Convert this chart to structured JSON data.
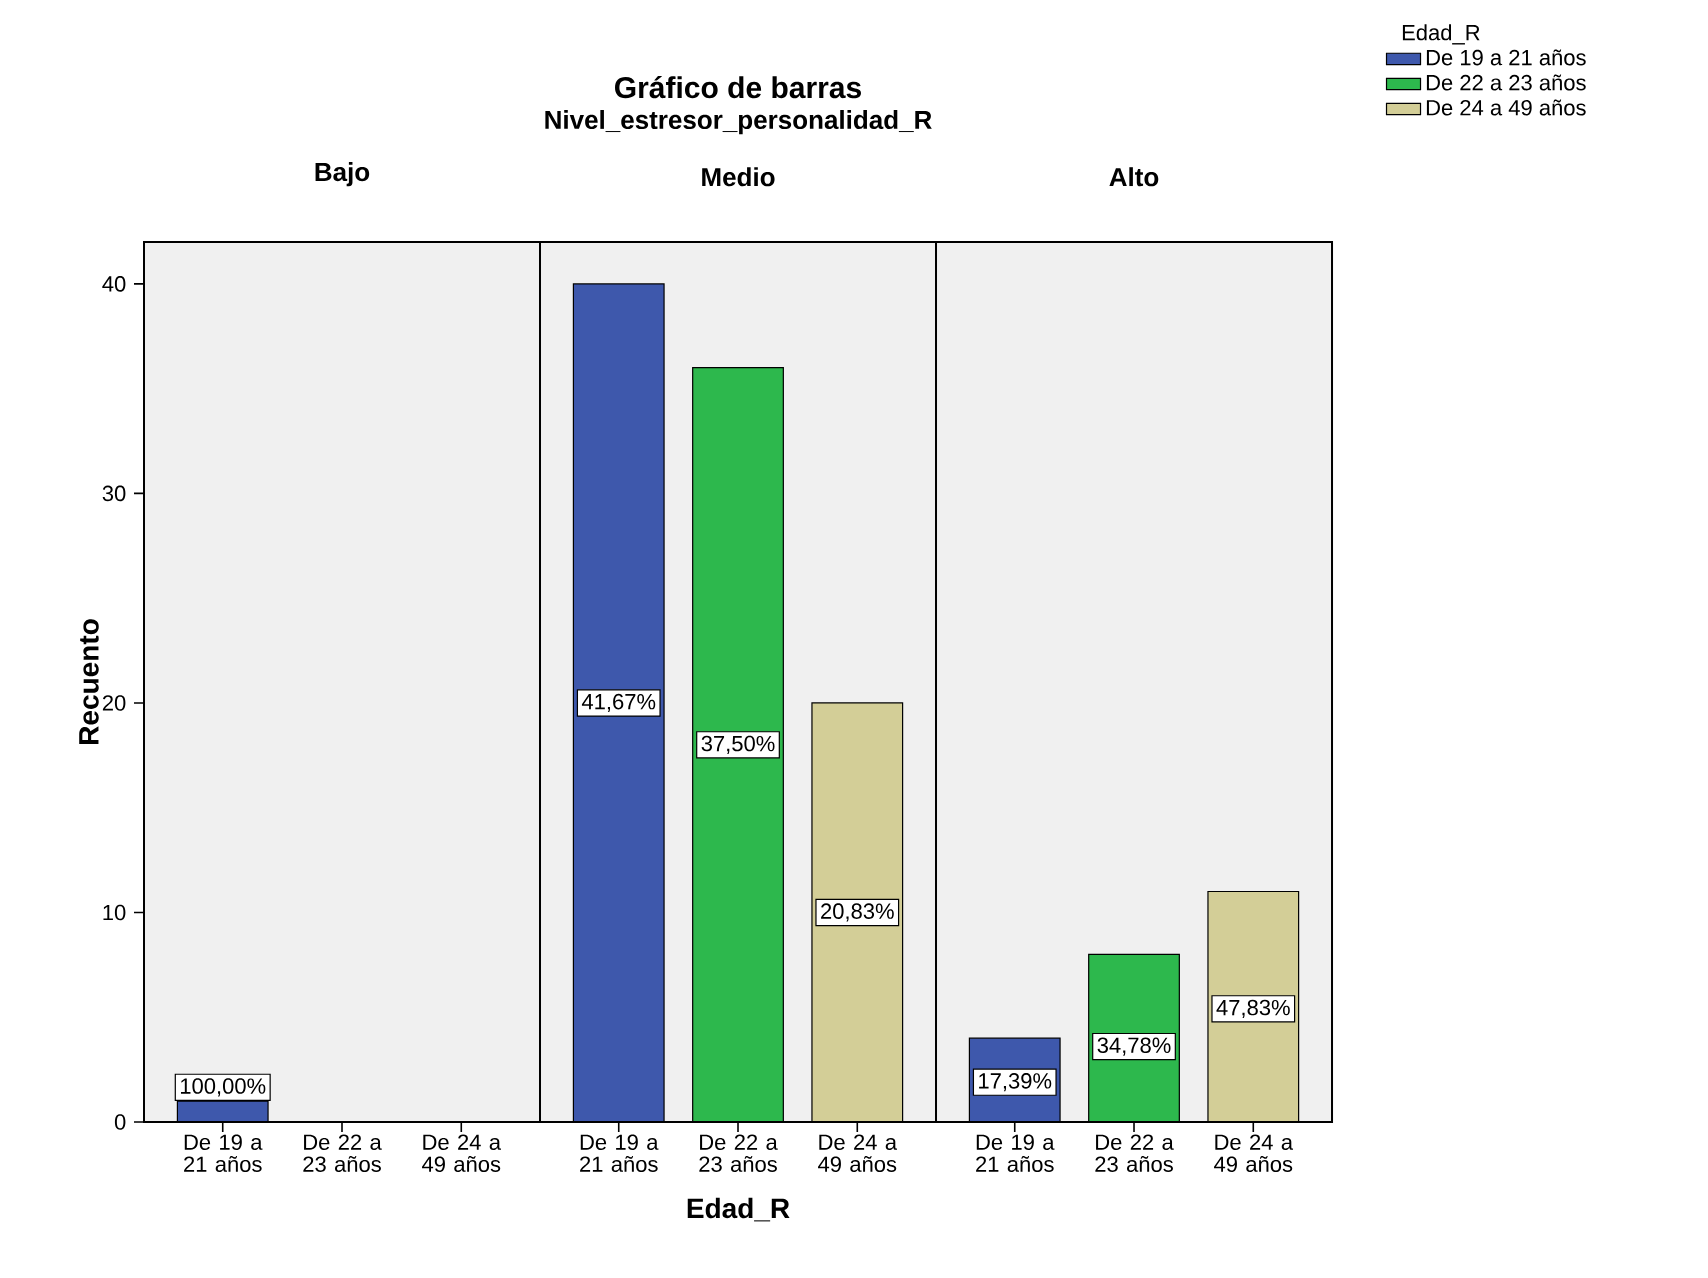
{
  "chart_data": [
    {
      "type": "bar",
      "title": "Bajo",
      "ylabel": "Recuento",
      "categories": [
        "De 19 a 21 años",
        "De 22 a 23 años",
        "De 24 a 49 años"
      ],
      "ylim": [
        0,
        42
      ],
      "yticks": [
        0,
        10,
        20,
        30,
        40
      ],
      "annotations": [
        {
          "text": "100,00%",
          "x": "De 19 a 21 años",
          "y": 1
        }
      ],
      "series": [
        {
          "color": "#3e58ac",
          "values": [
            1,
            null,
            null
          ]
        },
        {
          "color": "#2db84d",
          "values": [
            null,
            null,
            null
          ]
        },
        {
          "color": "#d3ce97",
          "values": [
            null,
            null,
            null
          ]
        }
      ]
    },
    {
      "type": "bar",
      "title": "Medio",
      "xlabel": "Edad_R",
      "annotations": [
        "Gráfico de barras",
        "Nivel_estresor_personalidad_R",
        {
          "text": "41,67%",
          "x": "De 19 a 21 años",
          "y": 20
        },
        {
          "text": "37,50%",
          "x": "De 22 a 23 años",
          "y": 18
        },
        {
          "text": "20,83%",
          "x": "De 24 a 49 años",
          "y": 10
        }
      ],
      "categories": [
        "De 19 a 21 años",
        "De 22 a 23 años",
        "De 24 a 49 años"
      ],
      "ylim": [
        0,
        42
      ],
      "tick_labels": "x",
      "series": [
        {
          "color": "#3e58ac",
          "values": [
            40,
            null,
            null
          ]
        },
        {
          "color": "#2db84d",
          "values": [
            null,
            36,
            null
          ]
        },
        {
          "color": "#d3ce97",
          "values": [
            null,
            null,
            20
          ]
        }
      ]
    },
    {
      "type": "bar",
      "title": "Alto",
      "legend_title": "Edad_R",
      "legend": "top right",
      "categories": [
        "De 19 a 21 años",
        "De 22 a 23 años",
        "De 24 a 49 años"
      ],
      "ylim": [
        0,
        42
      ],
      "tick_labels": "x",
      "annotations": [
        {
          "text": "17,39%",
          "x": "De 19 a 21 años",
          "y": 1.9
        },
        {
          "text": "34,78%",
          "x": "De 22 a 23 años",
          "y": 3.6
        },
        {
          "text": "47,83%",
          "x": "De 24 a 49 años",
          "y": 5.4
        }
      ],
      "series": [
        {
          "name": "De 19 a 21 años",
          "color": "#3e58ac",
          "values": [
            4,
            null,
            null
          ]
        },
        {
          "name": "De 22 a 23 años",
          "color": "#2db84d",
          "values": [
            null,
            8,
            null
          ]
        },
        {
          "name": "De 24 a 49 años",
          "color": "#d3ce97",
          "values": [
            null,
            null,
            11
          ]
        }
      ]
    }
  ]
}
